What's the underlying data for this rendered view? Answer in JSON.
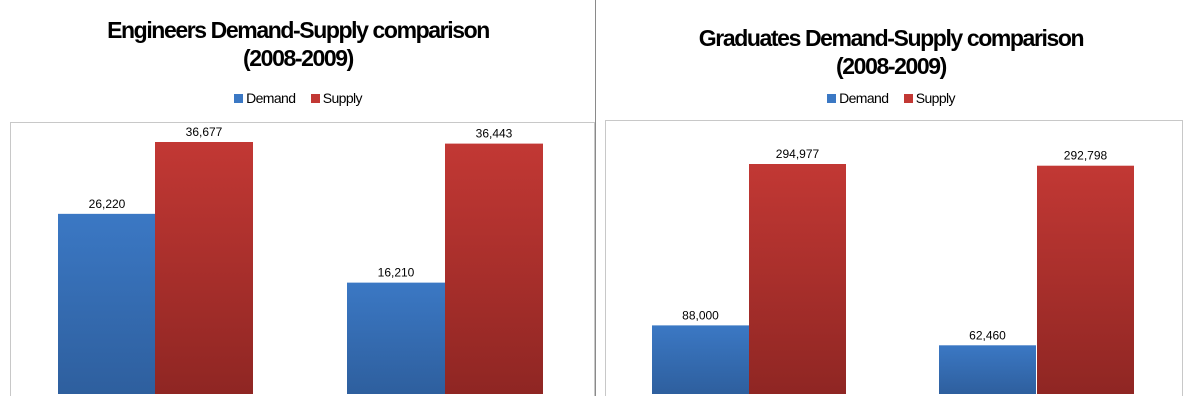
{
  "colors": {
    "demand": "#3b78c4",
    "supply": "#c23834"
  },
  "chart_data": [
    {
      "type": "bar",
      "title_lines": [
        "Engineers Demand-Supply comparison",
        "(2008-2009)"
      ],
      "legend": [
        "Demand",
        "Supply"
      ],
      "categories": [
        "",
        ""
      ],
      "series": [
        {
          "name": "Demand",
          "values": [
            26220,
            16210
          ]
        },
        {
          "name": "Supply",
          "values": [
            36677,
            36443
          ]
        }
      ],
      "value_labels": {
        "Demand": [
          "26,220",
          "16,210"
        ],
        "Supply": [
          "36,677",
          "36,443"
        ]
      },
      "ylim": [
        0,
        40000
      ],
      "grid": false,
      "legend_position": "top"
    },
    {
      "type": "bar",
      "title_lines": [
        "Graduates Demand-Supply comparison",
        "(2008-2009)"
      ],
      "legend": [
        "Demand",
        "Supply"
      ],
      "categories": [
        "",
        ""
      ],
      "series": [
        {
          "name": "Demand",
          "values": [
            88000,
            62460
          ]
        },
        {
          "name": "Supply",
          "values": [
            294977,
            292798
          ]
        }
      ],
      "value_labels": {
        "Demand": [
          "88,000",
          "62,460"
        ],
        "Supply": [
          "294,977",
          "292,798"
        ]
      },
      "ylim": [
        0,
        350000
      ],
      "grid": false,
      "legend_position": "top"
    }
  ]
}
